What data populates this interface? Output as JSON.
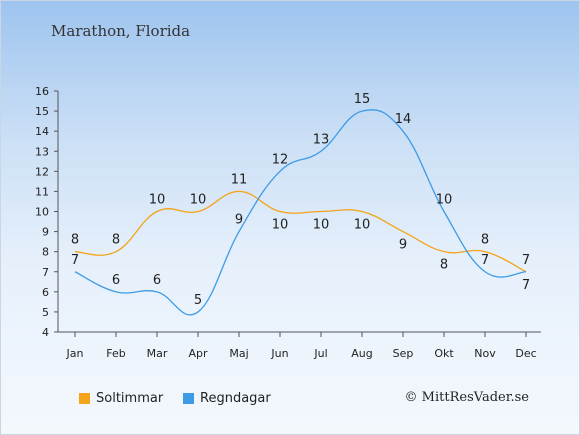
{
  "title": "Marathon, Florida",
  "copyright": "© MittResVader.se",
  "chart_data": {
    "type": "line",
    "categories": [
      "Jan",
      "Feb",
      "Mar",
      "Apr",
      "Maj",
      "Jun",
      "Jul",
      "Aug",
      "Sep",
      "Okt",
      "Nov",
      "Dec"
    ],
    "series": [
      {
        "name": "Soltimmar",
        "color": "#f5a31a",
        "values": [
          8,
          8,
          10,
          10,
          11,
          10,
          10,
          10,
          9,
          8,
          8,
          7
        ]
      },
      {
        "name": "Regndagar",
        "color": "#3d9be6",
        "values": [
          7,
          6,
          6,
          5,
          9,
          12,
          13,
          15,
          14,
          10,
          7,
          7
        ]
      }
    ],
    "ylim": [
      4,
      16
    ],
    "yticks": [
      4,
      5,
      6,
      7,
      8,
      9,
      10,
      11,
      12,
      13,
      14,
      15,
      16
    ],
    "grid": false,
    "legend": "bottom"
  }
}
